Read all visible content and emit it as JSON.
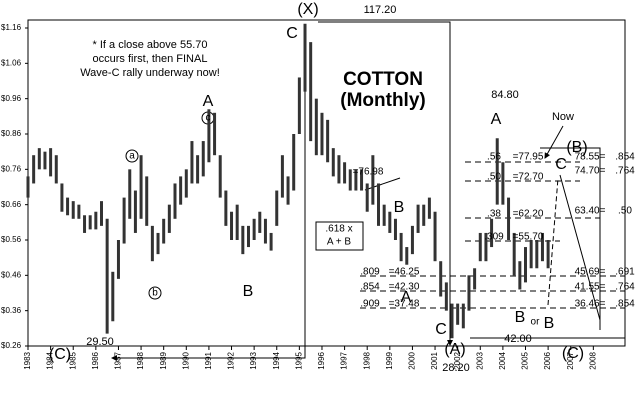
{
  "chart_data": {
    "type": "range-bar",
    "title": "COTTON",
    "subtitle": "(Monthly)",
    "color": "#333333",
    "x": [
      1983,
      1983.25,
      1983.5,
      1983.75,
      1984,
      1984.25,
      1984.5,
      1984.75,
      1985,
      1985.25,
      1985.5,
      1985.75,
      1986,
      1986.25,
      1986.5,
      1986.75,
      1987,
      1987.25,
      1987.5,
      1987.75,
      1988,
      1988.25,
      1988.5,
      1988.75,
      1989,
      1989.25,
      1989.5,
      1989.75,
      1990,
      1990.25,
      1990.5,
      1990.75,
      1991,
      1991.25,
      1991.5,
      1991.75,
      1992,
      1992.25,
      1992.5,
      1992.75,
      1993,
      1993.25,
      1993.5,
      1993.75,
      1994,
      1994.25,
      1994.5,
      1994.75,
      1995,
      1995.25,
      1995.5,
      1995.75,
      1996,
      1996.25,
      1996.5,
      1996.75,
      1997,
      1997.25,
      1997.5,
      1997.75,
      1998,
      1998.25,
      1998.5,
      1998.75,
      1999,
      1999.25,
      1999.5,
      1999.75,
      2000,
      2000.25,
      2000.5,
      2000.75,
      2001,
      2001.25,
      2001.5,
      2001.75,
      2002,
      2002.25,
      2002.5,
      2002.75,
      2003,
      2003.25,
      2003.5,
      2003.75,
      2004,
      2004.25,
      2004.5,
      2004.75,
      2005,
      2005.25,
      2005.5,
      2005.75,
      2006
    ],
    "high": [
      0.74,
      0.8,
      0.82,
      0.81,
      0.82,
      0.8,
      0.72,
      0.68,
      0.67,
      0.66,
      0.63,
      0.63,
      0.64,
      0.67,
      0.62,
      0.47,
      0.56,
      0.68,
      0.76,
      0.7,
      0.8,
      0.74,
      0.6,
      0.58,
      0.62,
      0.66,
      0.72,
      0.74,
      0.76,
      0.84,
      0.8,
      0.84,
      0.93,
      0.92,
      0.8,
      0.7,
      0.64,
      0.66,
      0.6,
      0.6,
      0.62,
      0.64,
      0.62,
      0.58,
      0.7,
      0.8,
      0.74,
      0.86,
      1.02,
      1.172,
      1.12,
      0.96,
      0.92,
      0.9,
      0.82,
      0.8,
      0.78,
      0.76,
      0.76,
      0.76,
      0.72,
      0.8,
      0.72,
      0.66,
      0.64,
      0.62,
      0.58,
      0.54,
      0.6,
      0.66,
      0.66,
      0.68,
      0.64,
      0.5,
      0.44,
      0.38,
      0.38,
      0.38,
      0.46,
      0.48,
      0.58,
      0.58,
      0.62,
      0.848,
      0.78,
      0.68,
      0.58,
      0.5,
      0.54,
      0.56,
      0.56,
      0.58,
      0.56
    ],
    "low": [
      0.68,
      0.72,
      0.76,
      0.76,
      0.74,
      0.72,
      0.64,
      0.63,
      0.62,
      0.62,
      0.58,
      0.59,
      0.59,
      0.6,
      0.295,
      0.33,
      0.45,
      0.55,
      0.62,
      0.58,
      0.62,
      0.6,
      0.5,
      0.52,
      0.55,
      0.58,
      0.62,
      0.66,
      0.68,
      0.72,
      0.72,
      0.74,
      0.78,
      0.8,
      0.68,
      0.6,
      0.56,
      0.56,
      0.52,
      0.54,
      0.56,
      0.58,
      0.55,
      0.53,
      0.6,
      0.68,
      0.66,
      0.7,
      0.86,
      0.98,
      0.84,
      0.8,
      0.8,
      0.78,
      0.74,
      0.72,
      0.72,
      0.7,
      0.7,
      0.7,
      0.64,
      0.66,
      0.6,
      0.6,
      0.58,
      0.56,
      0.5,
      0.49,
      0.52,
      0.58,
      0.6,
      0.62,
      0.5,
      0.4,
      0.36,
      0.282,
      0.32,
      0.31,
      0.36,
      0.42,
      0.5,
      0.5,
      0.54,
      0.66,
      0.66,
      0.56,
      0.46,
      0.42,
      0.44,
      0.48,
      0.48,
      0.5,
      0.48
    ],
    "xlim": [
      1983,
      2009.4
    ],
    "ylim": [
      0.26,
      1.16
    ],
    "yticks": [
      {
        "value": 0.26,
        "label": "$0.26"
      },
      {
        "value": 0.36,
        "label": "$0.36"
      },
      {
        "value": 0.46,
        "label": "$0.46"
      },
      {
        "value": 0.56,
        "label": "$0.56"
      },
      {
        "value": 0.66,
        "label": "$0.66"
      },
      {
        "value": 0.76,
        "label": "$0.76"
      },
      {
        "value": 0.86,
        "label": "$0.86"
      },
      {
        "value": 0.96,
        "label": "$0.96"
      },
      {
        "value": 1.06,
        "label": "$1.06"
      },
      {
        "value": 1.16,
        "label": "$1.16"
      }
    ],
    "xticks": [
      1983,
      1984,
      1985,
      1986,
      1987,
      1988,
      1989,
      1990,
      1991,
      1992,
      1993,
      1994,
      1995,
      1996,
      1997,
      1998,
      1999,
      2000,
      2001,
      2002,
      2003,
      2004,
      2005,
      2006,
      2007,
      2008
    ],
    "annotations": [
      "(X)",
      "117.20",
      "C",
      "* If a close above 55.70",
      "occurs first, then FINAL",
      "Wave-C rally underway now!",
      "A",
      "c",
      "a",
      "b",
      "B",
      "84.80",
      "A",
      "Now",
      "(B)",
      "C",
      "=76.98",
      ".618 x",
      "A + B",
      "B",
      ".56",
      "=77.95",
      ".50",
      "=72.70",
      ".38",
      "=62.20",
      ".309",
      "=55.70",
      "A",
      ".809",
      "=46.25",
      ".854",
      "=42.30",
      ".909",
      "=37.48",
      "78.55=",
      ".854",
      "74.70=",
      ".764",
      "63.40=",
      ".50",
      "45.69=",
      ".691",
      "41.55=",
      ".764",
      "36.46=",
      ".854",
      "B",
      "or",
      "B",
      "42.00",
      "C",
      "(A)",
      "28.20",
      "(C)",
      "29.50",
      "(C)"
    ]
  }
}
